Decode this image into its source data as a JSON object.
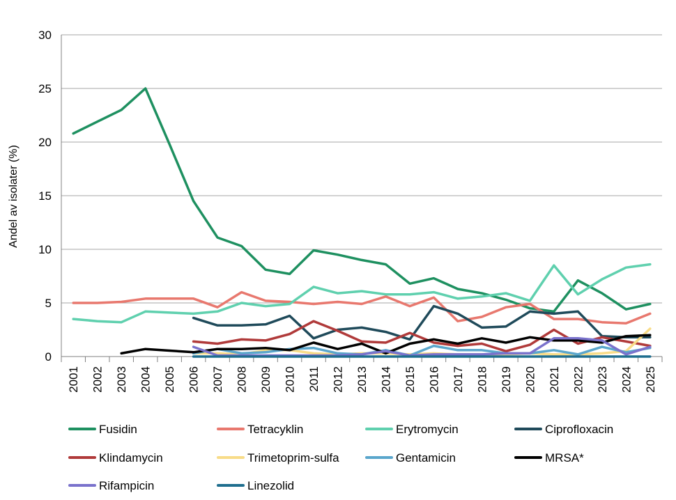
{
  "chart_data": {
    "type": "line",
    "ylabel": "Andel av isolater (%)",
    "xlabel": "",
    "ylim": [
      0,
      30
    ],
    "yticks": [
      0,
      5,
      10,
      15,
      20,
      25,
      30
    ],
    "grid": "horizontal",
    "legend_position": "bottom",
    "x": [
      "2001",
      "2002",
      "2003",
      "2004",
      "2005",
      "2006",
      "2007",
      "2008",
      "2009",
      "2010",
      "2011",
      "2012",
      "2013",
      "2014",
      "2015",
      "2016",
      "2017",
      "2018",
      "2019",
      "2020",
      "2021",
      "2022",
      "2023",
      "2024",
      "2025"
    ],
    "series": [
      {
        "name": "Fusidin",
        "color": "#1e9060",
        "values": [
          20.8,
          21.9,
          23.0,
          25.0,
          19.8,
          14.5,
          11.1,
          10.3,
          8.1,
          7.7,
          9.9,
          9.5,
          9.0,
          8.6,
          6.8,
          7.3,
          6.3,
          5.9,
          5.3,
          4.5,
          4.2,
          7.1,
          5.9,
          4.4,
          4.9
        ]
      },
      {
        "name": "Tetracyklin",
        "color": "#e8786e",
        "values": [
          5.0,
          5.0,
          5.1,
          5.4,
          5.4,
          5.4,
          4.6,
          6.0,
          5.2,
          5.1,
          4.9,
          5.1,
          4.9,
          5.6,
          4.7,
          5.5,
          3.3,
          3.7,
          4.6,
          4.9,
          3.5,
          3.5,
          3.2,
          3.1,
          4.0
        ]
      },
      {
        "name": "Erytromycin",
        "color": "#5fd0ae",
        "values": [
          3.5,
          3.3,
          3.2,
          4.2,
          4.1,
          4.0,
          4.2,
          5.0,
          4.7,
          4.9,
          6.5,
          5.9,
          6.1,
          5.8,
          5.8,
          6.0,
          5.4,
          5.6,
          5.9,
          5.2,
          8.5,
          5.8,
          7.2,
          8.3,
          8.6
        ]
      },
      {
        "name": "Ciprofloxacin",
        "color": "#1f4a5a",
        "values": [
          null,
          null,
          null,
          null,
          null,
          3.6,
          2.9,
          2.9,
          3.0,
          3.8,
          1.7,
          2.5,
          2.7,
          2.3,
          1.6,
          4.7,
          4.0,
          2.7,
          2.8,
          4.2,
          4.0,
          4.2,
          1.9,
          1.8,
          1.8
        ]
      },
      {
        "name": "Klindamycin",
        "color": "#b03a3a",
        "values": [
          null,
          null,
          null,
          null,
          null,
          1.4,
          1.2,
          1.6,
          1.5,
          2.1,
          3.3,
          2.4,
          1.4,
          1.3,
          2.2,
          1.3,
          1.0,
          1.2,
          0.5,
          1.1,
          2.5,
          1.2,
          1.8,
          1.4,
          1.0
        ]
      },
      {
        "name": "Trimetoprim-sulfa",
        "color": "#f8dc88",
        "values": [
          null,
          null,
          null,
          null,
          null,
          0.3,
          0.3,
          0.2,
          0.6,
          0.6,
          0.3,
          0.2,
          0.3,
          0.3,
          0.2,
          0.3,
          0.2,
          0.2,
          0.2,
          0.3,
          0.2,
          0.2,
          0.3,
          0.5,
          2.6
        ]
      },
      {
        "name": "Gentamicin",
        "color": "#5aa6cc",
        "values": [
          null,
          null,
          null,
          null,
          null,
          0.3,
          0.7,
          0.3,
          0.4,
          0.7,
          0.8,
          0.3,
          0.2,
          0.6,
          0.1,
          1.0,
          0.6,
          0.6,
          0.3,
          0.3,
          0.6,
          0.2,
          0.9,
          0.4,
          0.8
        ]
      },
      {
        "name": "MRSA*",
        "color": "#000000",
        "values": [
          null,
          null,
          0.3,
          0.7,
          0.55,
          0.4,
          0.7,
          0.7,
          0.8,
          0.6,
          1.3,
          0.7,
          1.2,
          0.3,
          1.2,
          1.6,
          1.2,
          1.7,
          1.3,
          1.8,
          1.5,
          1.5,
          1.3,
          1.9,
          2.0
        ]
      },
      {
        "name": "Rifampicin",
        "color": "#7a72cc",
        "values": [
          null,
          null,
          null,
          null,
          null,
          0.9,
          0.1,
          0.1,
          0.1,
          0.1,
          0.1,
          0.1,
          0.2,
          0.5,
          0.1,
          0.2,
          0.2,
          0.2,
          0.3,
          0.3,
          1.7,
          1.7,
          1.5,
          0.2,
          0.9
        ]
      },
      {
        "name": "Linezolid",
        "color": "#1f6e8e",
        "values": [
          null,
          null,
          null,
          null,
          null,
          0.0,
          0.0,
          0.0,
          0.0,
          0.0,
          0.0,
          0.0,
          0.0,
          0.0,
          0.0,
          0.0,
          0.0,
          0.0,
          0.0,
          0.0,
          0.0,
          0.0,
          0.0,
          0.0,
          0.0
        ]
      }
    ]
  }
}
